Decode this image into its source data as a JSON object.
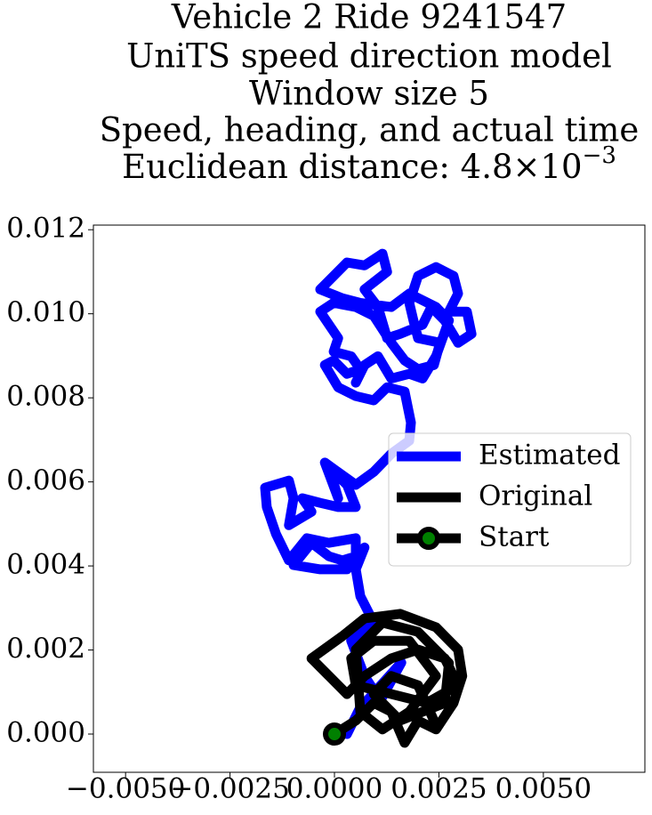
{
  "chart_data": {
    "type": "line",
    "title": [
      "Vehicle 2 Ride 9241547",
      "UniTS speed direction model",
      "Window size 5",
      "Speed, heading, and actual time",
      "Euclidean distance: 4.8×10"
    ],
    "title_exponent": "−3",
    "xlim": [
      -0.00577,
      0.00743
    ],
    "ylim": [
      -0.00091,
      0.01211
    ],
    "xticks": [
      {
        "value": -0.005,
        "label": "−0.0050"
      },
      {
        "value": -0.0025,
        "label": "−0.0025"
      },
      {
        "value": 0,
        "label": "0.0000"
      },
      {
        "value": 0.0025,
        "label": "0.0025"
      },
      {
        "value": 0.005,
        "label": "0.0050"
      }
    ],
    "yticks": [
      {
        "value": 0,
        "label": "0.000"
      },
      {
        "value": 0.002,
        "label": "0.002"
      },
      {
        "value": 0.004,
        "label": "0.004"
      },
      {
        "value": 0.006,
        "label": "0.006"
      },
      {
        "value": 0.008,
        "label": "0.008"
      },
      {
        "value": 0.01,
        "label": "0.010"
      },
      {
        "value": 0.012,
        "label": "0.012"
      }
    ],
    "legend": "center right",
    "series": [
      {
        "name": "Estimated",
        "color": "#0000ff",
        "x": [
          0.0003,
          0.0006,
          0.0016,
          0.0011,
          0.00072,
          0.0004,
          0.00094,
          0.00062,
          0.00051,
          0.00072,
          0.0003,
          -0.00034,
          -0.00098,
          -0.00055,
          -0.00013,
          0.00019,
          0.00051,
          0.00051,
          -0.00013,
          -0.00066,
          -0.00109,
          -0.0014,
          -0.00162,
          -0.00166,
          -0.00109,
          -0.00098,
          -0.00109,
          -0.00055,
          -0.00077,
          -0.00034,
          9e-05,
          0.00051,
          0.0003,
          -0.00013,
          9e-05,
          -0.00023,
          0.00051,
          0.00094,
          0.00136,
          0.00179,
          0.00183,
          0.00168,
          0.00126,
          0.00094,
          0.00051,
          9e-05,
          -0.00023,
          -2e-05,
          0.0003,
          0.00062,
          0.0004,
          -2e-05,
          9e-05,
          -0.00013,
          -0.00034,
          -2e-05,
          0.00051,
          0.00094,
          0.00136,
          0.00168,
          0.002,
          0.00238,
          0.00253,
          0.002,
          0.00189,
          0.00179,
          0.002,
          0.00243,
          0.00285,
          0.00296,
          0.00274,
          0.00317,
          0.00328,
          0.00296,
          0.00264,
          0.00232,
          0.00211,
          0.00157,
          0.00126,
          0.00104,
          0.00072,
          0.00126,
          0.00115,
          0.00072,
          0.0003,
          -0.00013,
          -0.00034,
          0.00019,
          0.00062,
          0.00136,
          0.00179,
          0.00243,
          0.00274,
          0.00243,
          0.00211,
          0.00179,
          0.00136,
          0.00104,
          0.00072,
          0.00051
        ],
        "y": [
          0,
          0.0006,
          0.0017,
          0.0008,
          0.00138,
          0.00222,
          0.00265,
          0.00328,
          0.00392,
          0.00444,
          0.00392,
          0.00392,
          0.00402,
          0.00455,
          0.00423,
          0.00413,
          0.00423,
          0.00466,
          0.00455,
          0.00466,
          0.00413,
          0.00476,
          0.0054,
          0.00586,
          0.00603,
          0.00561,
          0.00497,
          0.00529,
          0.00561,
          0.0055,
          0.0054,
          0.0054,
          0.00593,
          0.00635,
          0.00561,
          0.00646,
          0.00593,
          0.00624,
          0.00667,
          0.00698,
          0.00741,
          0.00815,
          0.00825,
          0.00794,
          0.00804,
          0.00825,
          0.00878,
          0.00889,
          0.00857,
          0.00868,
          0.00899,
          0.0091,
          0.00942,
          0.00974,
          0.01005,
          0.01026,
          0.01016,
          0.00995,
          0.00931,
          0.00889,
          0.00868,
          0.00878,
          0.00931,
          0.00942,
          0.00984,
          0.01026,
          0.0109,
          0.01111,
          0.0109,
          0.01048,
          0.01005,
          0.01005,
          0.00952,
          0.00931,
          0.00984,
          0.01016,
          0.00974,
          0.00952,
          0.00942,
          0.01016,
          0.01058,
          0.011,
          0.01143,
          0.01115,
          0.01122,
          0.01079,
          0.01058,
          0.01037,
          0.01026,
          0.01016,
          0.01048,
          0.01016,
          0.00984,
          0.00899,
          0.00846,
          0.00857,
          0.00846,
          0.00899,
          0.00878,
          0.00836
        ]
      },
      {
        "name": "Original",
        "color": "#000000",
        "x": [
          0,
          0.00051,
          0.00094,
          0.00136,
          0.00168,
          0.002,
          0.00243,
          0.00285,
          0.00306,
          0.00296,
          0.00243,
          0.00157,
          0.00072,
          0.00019,
          -0.00055,
          -0.00013,
          0.0003,
          0.00072,
          0.00136,
          0.002,
          0.00264,
          0.00296,
          0.00221,
          0.00136,
          0.00051,
          0.0004,
          0.00094,
          0.00179,
          0.00243,
          0.00179,
          0.00115,
          0.00062,
          0.00051,
          0.00115,
          0.002,
          0.00274,
          0.00264,
          0.00157,
          0.00094,
          0.00136,
          0.002,
          0.00243
        ],
        "y": [
          0,
          0.00032,
          0.00074,
          0.00053,
          -0.00021,
          0.00032,
          0.00011,
          0.00074,
          0.00138,
          0.00201,
          0.00254,
          0.00286,
          0.00275,
          0.00233,
          0.0018,
          0.00138,
          0.00095,
          0.00138,
          0.0018,
          0.00201,
          0.0018,
          0.00116,
          0.00074,
          0.00095,
          0.00116,
          0.0018,
          0.00222,
          0.00222,
          0.00138,
          0.00053,
          0.00011,
          0.00053,
          0.00201,
          0.00265,
          0.00243,
          0.00169,
          0.00074,
          0.00032,
          0.00095,
          0.00138,
          0.00116,
          0.00021
        ]
      },
      {
        "name": "Start",
        "color": "#000000",
        "marker_color": "#008000",
        "x": [
          0
        ],
        "y": [
          0
        ]
      }
    ]
  }
}
